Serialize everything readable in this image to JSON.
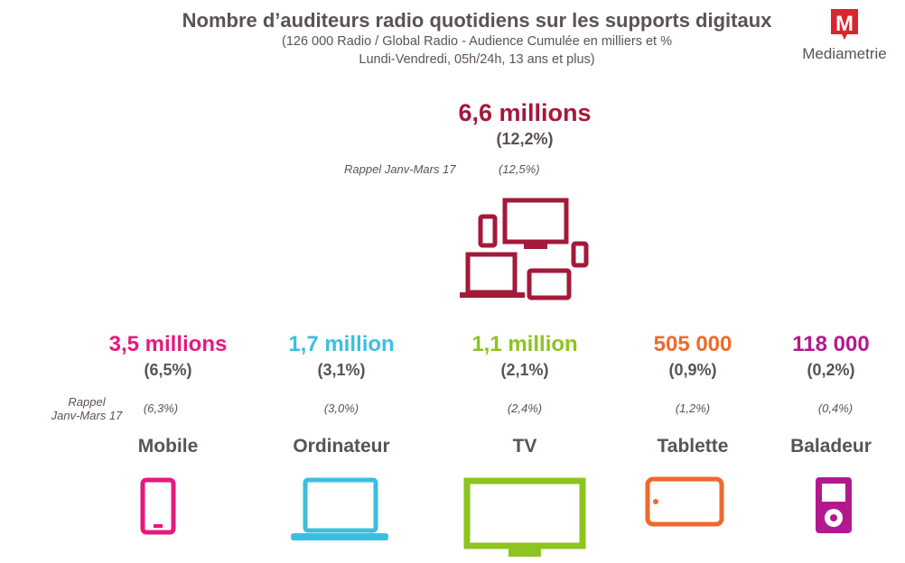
{
  "title": "Nombre d’auditeurs radio quotidiens sur les supports digitaux",
  "subtitle_line1": "(126 000 Radio / Global Radio - Audience Cumulée en milliers et %",
  "subtitle_line2": "Lundi-Vendredi, 05h/24h, 13 ans et plus)",
  "logo": {
    "letter": "M",
    "name": "Mediametrie",
    "color": "#d9262e"
  },
  "total": {
    "value": "6,6 millions",
    "pct": "(12,2%)",
    "rappel_label": "Rappel Janv-Mars 17",
    "rappel_pct": "(12,5%)",
    "color": "#a3193a",
    "icon": "multi-device-icon"
  },
  "rappel_label_line1": "Rappel",
  "rappel_label_line2": "Janv-Mars 17",
  "devices": [
    {
      "label": "Mobile",
      "value": "3,5 millions",
      "pct": "(6,5%)",
      "rappel": "(6,3%)",
      "color": "#e5197d",
      "icon": "mobile-icon"
    },
    {
      "label": "Ordinateur",
      "value": "1,7 million",
      "pct": "(3,1%)",
      "rappel": "(3,0%)",
      "color": "#3bbfe0",
      "icon": "laptop-icon"
    },
    {
      "label": "TV",
      "value": "1,1 million",
      "pct": "(2,1%)",
      "rappel": "(2,4%)",
      "color": "#8dc41f",
      "icon": "tv-icon"
    },
    {
      "label": "Tablette",
      "value": "505 000",
      "pct": "(0,9%)",
      "rappel": "(1,2%)",
      "color": "#ee6a2c",
      "icon": "tablet-icon"
    },
    {
      "label": "Baladeur",
      "value": "118 000",
      "pct": "(0,2%)",
      "rappel": "(0,4%)",
      "color": "#b3198f",
      "icon": "music-player-icon"
    }
  ]
}
